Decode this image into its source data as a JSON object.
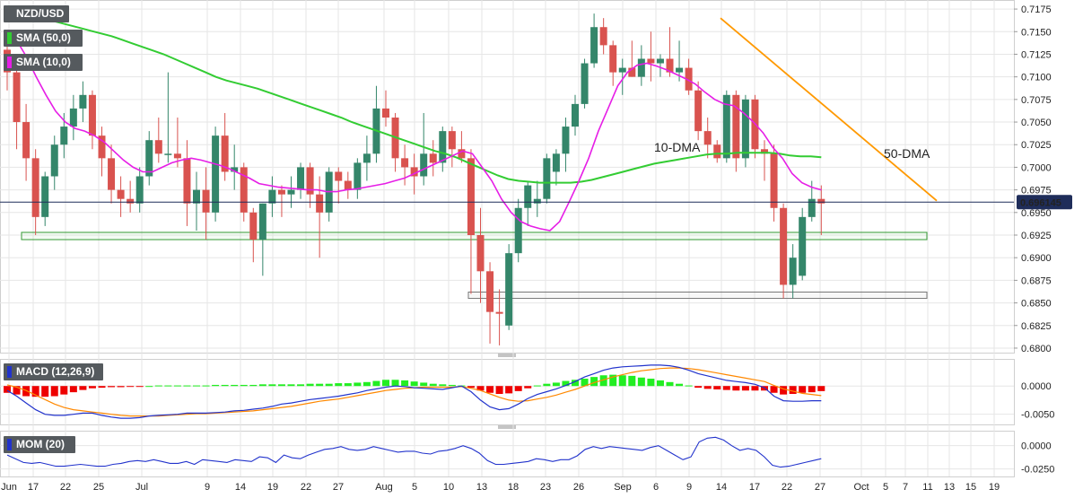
{
  "chart_data": [
    {
      "type": "candlestick",
      "title": "NZD/USD",
      "legend": [
        {
          "name": "SMA (50,0)",
          "color": "#33cc33"
        },
        {
          "name": "SMA (10,0)",
          "color": "#e61ee6"
        }
      ],
      "annotations": [
        {
          "text": "10-DMA",
          "color": "#e61ee6"
        },
        {
          "text": "50-DMA",
          "color": "#33cc33"
        }
      ],
      "last_price": "0.696145",
      "y_ticks": [
        "0.7175",
        "0.7150",
        "0.7125",
        "0.7100",
        "0.7075",
        "0.7050",
        "0.7025",
        "0.7000",
        "0.6975",
        "0.6950",
        "0.6925",
        "0.6900",
        "0.6875",
        "0.6850",
        "0.6825",
        "0.6800"
      ],
      "ylim": [
        0.6795,
        0.7185
      ],
      "colors": {
        "up": "#34866a",
        "down": "#d9534f",
        "sma10": "#e61ee6",
        "sma50": "#33cc33",
        "trendline": "#ff9900"
      },
      "candles": [
        [
          0.713,
          0.714,
          0.7085,
          0.7105
        ],
        [
          0.7105,
          0.712,
          0.702,
          0.705
        ],
        [
          0.705,
          0.707,
          0.6985,
          0.701
        ],
        [
          0.701,
          0.702,
          0.6925,
          0.6945
        ],
        [
          0.6945,
          0.6995,
          0.6935,
          0.699
        ],
        [
          0.699,
          0.7035,
          0.6975,
          0.7025
        ],
        [
          0.7025,
          0.706,
          0.701,
          0.7045
        ],
        [
          0.7045,
          0.708,
          0.703,
          0.7065
        ],
        [
          0.7065,
          0.7095,
          0.705,
          0.708
        ],
        [
          0.708,
          0.7085,
          0.702,
          0.7035
        ],
        [
          0.7035,
          0.7045,
          0.699,
          0.701
        ],
        [
          0.701,
          0.7025,
          0.696,
          0.6975
        ],
        [
          0.6975,
          0.699,
          0.6945,
          0.6965
        ],
        [
          0.6965,
          0.6985,
          0.695,
          0.696
        ],
        [
          0.696,
          0.7,
          0.695,
          0.699
        ],
        [
          0.699,
          0.704,
          0.698,
          0.703
        ],
        [
          0.703,
          0.7055,
          0.7005,
          0.7015
        ],
        [
          0.7015,
          0.7105,
          0.7005,
          0.7015
        ],
        [
          0.7015,
          0.7055,
          0.7,
          0.701
        ],
        [
          0.701,
          0.703,
          0.6935,
          0.696
        ],
        [
          0.696,
          0.6995,
          0.693,
          0.6975
        ],
        [
          0.6975,
          0.7,
          0.692,
          0.695
        ],
        [
          0.695,
          0.7045,
          0.694,
          0.7035
        ],
        [
          0.7035,
          0.706,
          0.6985,
          0.6995
        ],
        [
          0.6995,
          0.7025,
          0.6975,
          0.7
        ],
        [
          0.7,
          0.7005,
          0.694,
          0.695
        ],
        [
          0.695,
          0.6955,
          0.6895,
          0.692
        ],
        [
          0.692,
          0.696,
          0.688,
          0.696
        ],
        [
          0.696,
          0.699,
          0.6945,
          0.6975
        ],
        [
          0.6975,
          0.698,
          0.6945,
          0.697
        ],
        [
          0.697,
          0.699,
          0.6955,
          0.6975
        ],
        [
          0.6975,
          0.7005,
          0.6965,
          0.7
        ],
        [
          0.7,
          0.7005,
          0.6955,
          0.697
        ],
        [
          0.697,
          0.699,
          0.69,
          0.695
        ],
        [
          0.695,
          0.7,
          0.694,
          0.6995
        ],
        [
          0.6995,
          0.7,
          0.696,
          0.6985
        ],
        [
          0.6985,
          0.6995,
          0.6965,
          0.6975
        ],
        [
          0.6975,
          0.701,
          0.6965,
          0.7005
        ],
        [
          0.7005,
          0.7035,
          0.6985,
          0.7015
        ],
        [
          0.7015,
          0.709,
          0.7005,
          0.7065
        ],
        [
          0.7065,
          0.7085,
          0.7045,
          0.7055
        ],
        [
          0.7055,
          0.706,
          0.6995,
          0.701
        ],
        [
          0.701,
          0.7025,
          0.698,
          0.7
        ],
        [
          0.7,
          0.7015,
          0.697,
          0.699
        ],
        [
          0.699,
          0.706,
          0.698,
          0.7015
        ],
        [
          0.7015,
          0.703,
          0.699,
          0.7005
        ],
        [
          0.7005,
          0.7045,
          0.6995,
          0.704
        ],
        [
          0.704,
          0.7045,
          0.7,
          0.702
        ],
        [
          0.702,
          0.704,
          0.7005,
          0.701
        ],
        [
          0.701,
          0.702,
          0.686,
          0.6925
        ],
        [
          0.6925,
          0.6955,
          0.685,
          0.6885
        ],
        [
          0.6885,
          0.6895,
          0.6805,
          0.684
        ],
        [
          0.684,
          0.6865,
          0.6803,
          0.6838
        ],
        [
          0.6825,
          0.6915,
          0.682,
          0.6905
        ],
        [
          0.6905,
          0.6965,
          0.6895,
          0.6955
        ],
        [
          0.6955,
          0.6985,
          0.6935,
          0.698
        ],
        [
          0.696,
          0.6985,
          0.6945,
          0.6965
        ],
        [
          0.6965,
          0.7015,
          0.696,
          0.701
        ],
        [
          0.6995,
          0.702,
          0.698,
          0.7015
        ],
        [
          0.7015,
          0.7055,
          0.6995,
          0.7045
        ],
        [
          0.7045,
          0.708,
          0.7035,
          0.707
        ],
        [
          0.707,
          0.712,
          0.7065,
          0.7115
        ],
        [
          0.7115,
          0.717,
          0.711,
          0.7155
        ],
        [
          0.7155,
          0.7165,
          0.7125,
          0.7135
        ],
        [
          0.7135,
          0.714,
          0.709,
          0.7105
        ],
        [
          0.7105,
          0.712,
          0.708,
          0.711
        ],
        [
          0.711,
          0.714,
          0.71,
          0.71
        ],
        [
          0.71,
          0.7135,
          0.709,
          0.712
        ],
        [
          0.712,
          0.715,
          0.7095,
          0.7115
        ],
        [
          0.7115,
          0.7125,
          0.71,
          0.712
        ],
        [
          0.712,
          0.7155,
          0.71,
          0.7105
        ],
        [
          0.7105,
          0.714,
          0.7095,
          0.711
        ],
        [
          0.711,
          0.712,
          0.708,
          0.7085
        ],
        [
          0.7085,
          0.7095,
          0.703,
          0.704
        ],
        [
          0.704,
          0.7055,
          0.701,
          0.7025
        ],
        [
          0.7025,
          0.703,
          0.7005,
          0.701
        ],
        [
          0.701,
          0.7085,
          0.7005,
          0.708
        ],
        [
          0.708,
          0.7085,
          0.6995,
          0.701
        ],
        [
          0.701,
          0.708,
          0.7,
          0.7075
        ],
        [
          0.7075,
          0.708,
          0.701,
          0.702
        ],
        [
          0.702,
          0.703,
          0.6985,
          0.7015
        ],
        [
          0.7015,
          0.7025,
          0.694,
          0.6955
        ],
        [
          0.6955,
          0.696,
          0.6855,
          0.687
        ],
        [
          0.687,
          0.6915,
          0.6855,
          0.69
        ],
        [
          0.688,
          0.6955,
          0.6875,
          0.6945
        ],
        [
          0.6945,
          0.6985,
          0.694,
          0.6965
        ],
        [
          0.6965,
          0.698,
          0.6925,
          0.696
        ]
      ],
      "sma10": [
        0.7152,
        0.714,
        0.7122,
        0.71,
        0.708,
        0.7062,
        0.705,
        0.7043,
        0.704,
        0.7035,
        0.7028,
        0.7018,
        0.7008,
        0.7,
        0.6995,
        0.6995,
        0.7,
        0.7005,
        0.7008,
        0.701,
        0.7008,
        0.7005,
        0.7002,
        0.6998,
        0.6993,
        0.6988,
        0.6982,
        0.698,
        0.6978,
        0.6977,
        0.6976,
        0.6975,
        0.6975,
        0.6973,
        0.6973,
        0.6975,
        0.6976,
        0.6978,
        0.698,
        0.6982,
        0.6985,
        0.6988,
        0.6993,
        0.6998,
        0.7003,
        0.7008,
        0.7013,
        0.7018,
        0.7015,
        0.7,
        0.6985,
        0.6965,
        0.695,
        0.694,
        0.6935,
        0.6932,
        0.693,
        0.694,
        0.6962,
        0.6985,
        0.701,
        0.704,
        0.7065,
        0.709,
        0.7105,
        0.7113,
        0.7115,
        0.7112,
        0.7108,
        0.7103,
        0.7098,
        0.7092,
        0.7083,
        0.7075,
        0.707,
        0.7068,
        0.706,
        0.705,
        0.7038,
        0.7022,
        0.701,
        0.6993,
        0.6983,
        0.6978,
        0.6975
      ],
      "sma50": [
        0.7175,
        0.7172,
        0.7169,
        0.7166,
        0.7163,
        0.716,
        0.7157,
        0.7154,
        0.7151,
        0.7148,
        0.7145,
        0.7141,
        0.7137,
        0.7133,
        0.7129,
        0.7125,
        0.712,
        0.7115,
        0.711,
        0.7105,
        0.71,
        0.7096,
        0.7093,
        0.709,
        0.7087,
        0.7083,
        0.7079,
        0.7075,
        0.7071,
        0.7067,
        0.7063,
        0.7059,
        0.7055,
        0.705,
        0.7046,
        0.7042,
        0.7038,
        0.7034,
        0.703,
        0.7026,
        0.7022,
        0.7018,
        0.7015,
        0.7011,
        0.7006,
        0.7001,
        0.6996,
        0.6991,
        0.6987,
        0.6985,
        0.6984,
        0.6983,
        0.6983,
        0.6983,
        0.6983,
        0.6984,
        0.6986,
        0.6989,
        0.6992,
        0.6995,
        0.6998,
        0.7001,
        0.7004,
        0.7006,
        0.7008,
        0.701,
        0.7012,
        0.7014,
        0.7015,
        0.7015,
        0.7016,
        0.7016,
        0.7016,
        0.7016,
        0.7015,
        0.7013,
        0.7012,
        0.7012,
        0.7011
      ],
      "support_zones": [
        [
          0.692,
          0.6928
        ],
        [
          0.6855,
          0.6862
        ]
      ],
      "trendline": [
        [
          0.7165,
          0.6963
        ]
      ]
    },
    {
      "type": "bar+line",
      "title": "MACD (12,26,9)",
      "y_ticks": [
        "0.0000",
        "-0.0050"
      ],
      "ylim": [
        -0.0068,
        0.0048
      ],
      "colors": {
        "positive": "#22ee22",
        "negative": "#ee0000",
        "macd": "#2233cc",
        "signal": "#ff8800"
      },
      "histogram": [
        -0.0012,
        -0.0015,
        -0.0018,
        -0.0019,
        -0.0019,
        -0.0018,
        -0.0015,
        -0.0011,
        -0.0007,
        -0.0004,
        -0.0003,
        -0.0002,
        -0.0002,
        -0.0001,
        -0.0001,
        0.0,
        0.0001,
        0.0001,
        0.0001,
        0.0001,
        0.0001,
        0.0001,
        0.0002,
        0.0002,
        0.0002,
        0.0002,
        0.0002,
        0.0003,
        0.0003,
        0.0003,
        0.0003,
        0.0003,
        0.0004,
        0.0004,
        0.0004,
        0.0005,
        0.0005,
        0.0006,
        0.0007,
        0.0009,
        0.0011,
        0.0011,
        0.001,
        0.0008,
        0.0006,
        0.0004,
        0.0003,
        0.0002,
        0.0001,
        -0.0003,
        -0.0008,
        -0.0012,
        -0.0014,
        -0.0013,
        -0.0009,
        -0.0004,
        0.0001,
        0.0004,
        0.0006,
        0.0009,
        0.0011,
        0.0013,
        0.0016,
        0.0019,
        0.002,
        0.0019,
        0.0018,
        0.0015,
        0.0013,
        0.001,
        0.0007,
        0.0004,
        0.0001,
        -0.0003,
        -0.0005,
        -0.0006,
        -0.0007,
        -0.0008,
        -0.0008,
        -0.0008,
        -0.0008,
        -0.0012,
        -0.0015,
        -0.0014,
        -0.0012,
        -0.0011,
        -0.0009
      ],
      "macd": [
        -0.0008,
        -0.0018,
        -0.003,
        -0.0042,
        -0.005,
        -0.0052,
        -0.0052,
        -0.005,
        -0.0048,
        -0.0048,
        -0.0052,
        -0.0055,
        -0.0057,
        -0.0057,
        -0.0056,
        -0.0053,
        -0.0052,
        -0.0051,
        -0.005,
        -0.0048,
        -0.0048,
        -0.0048,
        -0.0047,
        -0.0046,
        -0.0044,
        -0.0043,
        -0.0041,
        -0.0039,
        -0.0036,
        -0.0032,
        -0.003,
        -0.0027,
        -0.0024,
        -0.0022,
        -0.002,
        -0.0018,
        -0.0015,
        -0.0012,
        -0.0008,
        -0.0005,
        -0.0002,
        0.0,
        -0.0001,
        -0.0003,
        -0.0004,
        -0.0005,
        -0.0006,
        -0.0003,
        0.0,
        -0.001,
        -0.0025,
        -0.0037,
        -0.0042,
        -0.004,
        -0.0032,
        -0.0022,
        -0.0015,
        -0.001,
        -0.0005,
        0.0001,
        0.0008,
        0.0016,
        0.0022,
        0.0028,
        0.0032,
        0.0034,
        0.0035,
        0.0036,
        0.0037,
        0.0037,
        0.0036,
        0.0033,
        0.0028,
        0.0022,
        0.0018,
        0.0014,
        0.001,
        0.0008,
        0.0006,
        0.0003,
        -0.0003,
        -0.0018,
        -0.0026,
        -0.0027,
        -0.0027,
        -0.0026,
        -0.0026
      ],
      "signal": [
        0.0002,
        -0.0002,
        -0.0008,
        -0.0016,
        -0.0024,
        -0.0032,
        -0.0038,
        -0.0042,
        -0.0044,
        -0.0046,
        -0.0048,
        -0.005,
        -0.0052,
        -0.0053,
        -0.0053,
        -0.0053,
        -0.0053,
        -0.0052,
        -0.0051,
        -0.005,
        -0.0049,
        -0.0049,
        -0.0048,
        -0.0047,
        -0.0046,
        -0.0045,
        -0.0044,
        -0.0042,
        -0.004,
        -0.0038,
        -0.0036,
        -0.0033,
        -0.003,
        -0.0027,
        -0.0025,
        -0.0023,
        -0.002,
        -0.0017,
        -0.0014,
        -0.0011,
        -0.0008,
        -0.0006,
        -0.0004,
        -0.0003,
        -0.0002,
        -0.0002,
        -0.0002,
        -0.0002,
        -0.0001,
        -0.0004,
        -0.0008,
        -0.0014,
        -0.002,
        -0.0025,
        -0.0027,
        -0.0026,
        -0.0023,
        -0.002,
        -0.0016,
        -0.0011,
        -0.0006,
        0.0,
        0.0006,
        0.0011,
        0.0016,
        0.002,
        0.0024,
        0.0027,
        0.0029,
        0.0031,
        0.0032,
        0.0032,
        0.0031,
        0.0029,
        0.0026,
        0.0023,
        0.002,
        0.0017,
        0.0014,
        0.0011,
        0.0008,
        0.0001,
        -0.0005,
        -0.0009,
        -0.0013,
        -0.0015,
        -0.0017
      ]
    },
    {
      "type": "line",
      "title": "MOM (20)",
      "y_ticks": [
        "0.0000",
        "-0.0250"
      ],
      "ylim": [
        -0.033,
        0.016
      ],
      "colors": {
        "line": "#2233cc"
      },
      "values": [
        -0.01,
        -0.014,
        -0.018,
        -0.019,
        -0.018,
        -0.02,
        -0.022,
        -0.022,
        -0.021,
        -0.02,
        -0.021,
        -0.022,
        -0.022,
        -0.02,
        -0.019,
        -0.017,
        -0.016,
        -0.017,
        -0.015,
        -0.017,
        -0.019,
        -0.019,
        -0.017,
        -0.02,
        -0.015,
        -0.016,
        -0.017,
        -0.018,
        -0.015,
        -0.016,
        -0.017,
        -0.012,
        -0.013,
        -0.018,
        -0.01,
        -0.013,
        -0.014,
        -0.01,
        -0.007,
        -0.004,
        -0.003,
        -0.001,
        -0.004,
        -0.005,
        -0.004,
        -0.001,
        -0.003,
        -0.005,
        -0.007,
        -0.006,
        -0.006,
        -0.008,
        -0.009,
        -0.006,
        -0.005,
        -0.003,
        0.0,
        -0.003,
        -0.008,
        -0.016,
        -0.02,
        -0.02,
        -0.019,
        -0.018,
        -0.017,
        -0.014,
        -0.015,
        -0.017,
        -0.015,
        -0.015,
        -0.011,
        -0.004,
        -0.001,
        -0.003,
        -0.001,
        -0.002,
        -0.003,
        -0.004,
        -0.005,
        -0.002,
        0.0,
        -0.005,
        -0.01,
        -0.015,
        -0.012,
        0.004,
        0.008,
        0.009,
        0.006,
        0.0,
        -0.005,
        -0.003,
        -0.005,
        -0.012,
        -0.021,
        -0.023,
        -0.022,
        -0.02,
        -0.018,
        -0.016,
        -0.014
      ]
    }
  ],
  "x_labels": [
    "Jun",
    "17",
    "22",
    "25",
    "Jul",
    "9",
    "14",
    "19",
    "22",
    "27",
    "Aug",
    "5",
    "10",
    "13",
    "18",
    "23",
    "26",
    "Sep",
    "6",
    "9",
    "14",
    "17",
    "22",
    "27",
    "Oct",
    "5",
    "7",
    "11",
    "13",
    "15",
    "19"
  ]
}
